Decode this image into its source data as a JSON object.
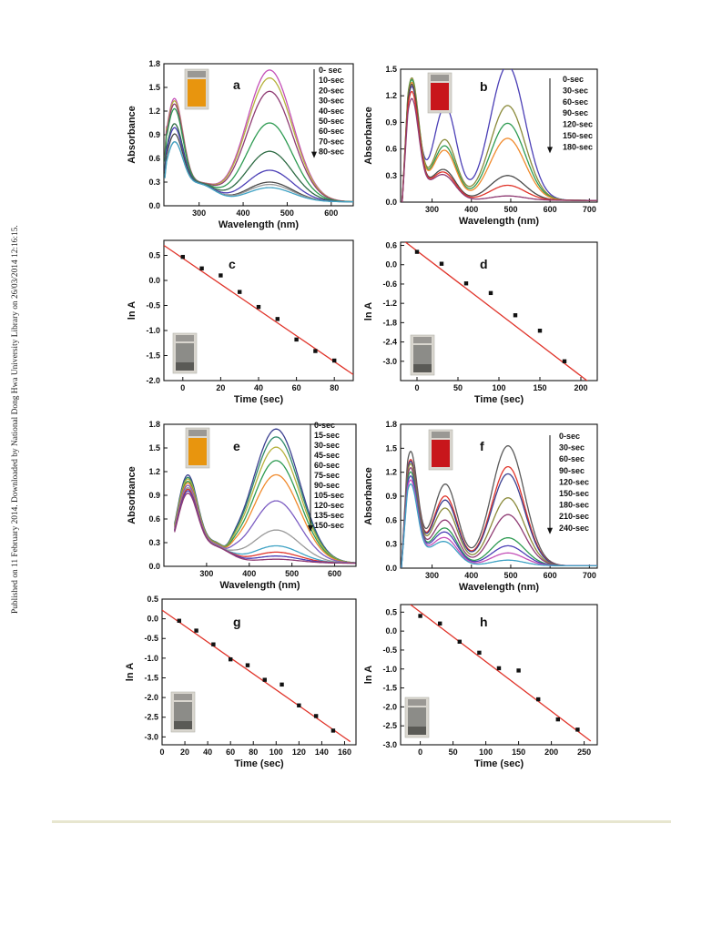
{
  "sidebar_text": "Published on 11 February 2014. Downloaded by National Dong Hwa University Library on 26/03/2014 12:16:15.",
  "colors": {
    "fit_line": "#e0342a",
    "marker": "#111111",
    "vial_orange": "#e8950e",
    "vial_red": "#c8161b",
    "vial_grey": "#8c8c88",
    "footer_rule": "#e7e6cf",
    "curve_palette": [
      "#c44fb8",
      "#b7b23e",
      "#8f3b73",
      "#2e9b52",
      "#2c6a42",
      "#4b3fb6",
      "#4a4a4a",
      "#9a9a9a",
      "#3ea2c4",
      "#e0342a",
      "#f08a2c",
      "#7b5cc2"
    ]
  },
  "chart_data": [
    {
      "id": "a",
      "type": "line",
      "panel_label": "a",
      "xlabel": "Wavelength (nm)",
      "ylabel": "Absorbance",
      "xlim": [
        220,
        650
      ],
      "ylim": [
        0,
        1.8
      ],
      "xticks": [
        300,
        400,
        500,
        600
      ],
      "yticks": [
        0.0,
        0.3,
        0.6,
        0.9,
        1.2,
        1.5,
        1.8
      ],
      "legend_position": "top-right",
      "legend": [
        "0- sec",
        "10-sec",
        "20-sec",
        "30-sec",
        "40-sec",
        "50-sec",
        "60-sec",
        "70-sec",
        "80-sec"
      ],
      "inset_vial": "orange",
      "series": [
        {
          "label": "0- sec",
          "color": "#c44fb8",
          "peak2": 1.67
        },
        {
          "label": "10-sec",
          "color": "#b7b23e",
          "peak2": 1.57
        },
        {
          "label": "20-sec",
          "color": "#8f3b73",
          "peak2": 1.4
        },
        {
          "label": "30-sec",
          "color": "#2e9b52",
          "peak2": 1.0
        },
        {
          "label": "40-sec",
          "color": "#2c6a42",
          "peak2": 0.64
        },
        {
          "label": "50-sec",
          "color": "#4b3fb6",
          "peak2": 0.4
        },
        {
          "label": "60-sec",
          "color": "#4a4a4a",
          "peak2": 0.25
        },
        {
          "label": "70-sec",
          "color": "#9a9a9a",
          "peak2": 0.22
        },
        {
          "label": "80-sec",
          "color": "#3ea2c4",
          "peak2": 0.18
        }
      ]
    },
    {
      "id": "b",
      "type": "line",
      "panel_label": "b",
      "xlabel": "Wavelength (nm)",
      "ylabel": "Absorbance",
      "xlim": [
        220,
        720
      ],
      "ylim": [
        0,
        1.5
      ],
      "xticks": [
        300,
        400,
        500,
        600,
        700
      ],
      "yticks": [
        0.0,
        0.3,
        0.6,
        0.9,
        1.2,
        1.5
      ],
      "legend_position": "top-right",
      "legend": [
        "0-sec",
        "30-sec",
        "60-sec",
        "90-sec",
        "120-sec",
        "150-sec",
        "180-sec"
      ],
      "inset_vial": "red",
      "series": [
        {
          "label": "0-sec",
          "color": "#4b3fb6",
          "peak2": 1.52
        },
        {
          "label": "30-sec",
          "color": "#8a8a3a",
          "peak2": 1.07
        },
        {
          "label": "60-sec",
          "color": "#2e9b52",
          "peak2": 0.87
        },
        {
          "label": "90-sec",
          "color": "#f08a2c",
          "peak2": 0.7
        },
        {
          "label": "120-sec",
          "color": "#4a4a4a",
          "peak2": 0.28
        },
        {
          "label": "150-sec",
          "color": "#e0342a",
          "peak2": 0.17
        },
        {
          "label": "180-sec",
          "color": "#8f3b73",
          "peak2": 0.05
        }
      ]
    },
    {
      "id": "c",
      "type": "scatter",
      "panel_label": "c",
      "xlabel": "Time (sec)",
      "ylabel": "ln A",
      "xlim": [
        -10,
        90
      ],
      "ylim": [
        -2.0,
        0.8
      ],
      "xticks": [
        0,
        20,
        40,
        60,
        80
      ],
      "yticks": [
        -2.0,
        -1.5,
        -1.0,
        -0.5,
        0.0,
        0.5
      ],
      "inset_vial": "grey",
      "x": [
        0,
        10,
        20,
        30,
        40,
        50,
        60,
        70,
        80
      ],
      "y": [
        0.47,
        0.24,
        0.1,
        -0.23,
        -0.53,
        -0.77,
        -1.18,
        -1.41,
        -1.6
      ],
      "fit": {
        "x": [
          -10,
          90
        ],
        "y": [
          0.7,
          -1.88
        ]
      }
    },
    {
      "id": "d",
      "type": "scatter",
      "panel_label": "d",
      "xlabel": "Time (sec)",
      "ylabel": "ln A",
      "xlim": [
        -20,
        220
      ],
      "ylim": [
        -3.6,
        0.7
      ],
      "xticks": [
        0,
        50,
        100,
        150,
        200
      ],
      "yticks": [
        -3.0,
        -2.4,
        -1.8,
        -1.2,
        -0.6,
        0.0,
        0.6
      ],
      "inset_vial": "grey",
      "x": [
        0,
        30,
        60,
        90,
        120,
        150,
        180
      ],
      "y": [
        0.4,
        0.03,
        -0.58,
        -0.88,
        -1.57,
        -2.05,
        -3.0
      ],
      "fit": {
        "x": [
          -15,
          210
        ],
        "y": [
          0.72,
          -3.65
        ]
      }
    },
    {
      "id": "e",
      "type": "line",
      "panel_label": "e",
      "xlabel": "Wavelength (nm)",
      "ylabel": "Absorbance",
      "xlim": [
        200,
        650
      ],
      "ylim": [
        0,
        1.8
      ],
      "xticks": [
        300,
        400,
        500,
        600
      ],
      "yticks": [
        0.0,
        0.3,
        0.6,
        0.9,
        1.2,
        1.5,
        1.8
      ],
      "legend_position": "top-right",
      "legend": [
        "0-sec",
        "15-sec",
        "30-sec",
        "45-sec",
        "60-sec",
        "75-sec",
        "90-sec",
        "105-sec",
        "120-sec",
        "135-sec",
        "150-sec"
      ],
      "inset_vial": "orange",
      "series": [
        {
          "label": "0-sec",
          "color": "#3a3f8f",
          "peak2": 1.7
        },
        {
          "label": "15-sec",
          "color": "#2f8a6a",
          "peak2": 1.6
        },
        {
          "label": "30-sec",
          "color": "#b7b23e",
          "peak2": 1.47
        },
        {
          "label": "45-sec",
          "color": "#2e9b52",
          "peak2": 1.3
        },
        {
          "label": "60-sec",
          "color": "#f08a2c",
          "peak2": 1.12
        },
        {
          "label": "75-sec",
          "color": "#7b5cc2",
          "peak2": 0.79
        },
        {
          "label": "90-sec",
          "color": "#9a9a9a",
          "peak2": 0.42
        },
        {
          "label": "105-sec",
          "color": "#3ea2c4",
          "peak2": 0.22
        },
        {
          "label": "120-sec",
          "color": "#e0342a",
          "peak2": 0.14
        },
        {
          "label": "135-sec",
          "color": "#4b3fb6",
          "peak2": 0.09
        },
        {
          "label": "150-sec",
          "color": "#8f3b73",
          "peak2": 0.05
        }
      ]
    },
    {
      "id": "f",
      "type": "line",
      "panel_label": "f",
      "xlabel": "Wavelength (nm)",
      "ylabel": "Absorbance",
      "xlim": [
        220,
        720
      ],
      "ylim": [
        0,
        1.8
      ],
      "xticks": [
        300,
        400,
        500,
        600,
        700
      ],
      "yticks": [
        0.0,
        0.3,
        0.6,
        0.9,
        1.2,
        1.5,
        1.8
      ],
      "legend_position": "top-right",
      "legend": [
        "0-sec",
        "30-sec",
        "60-sec",
        "90-sec",
        "120-sec",
        "150-sec",
        "180-sec",
        "210-sec",
        "240-sec"
      ],
      "inset_vial": "red",
      "series": [
        {
          "label": "0-sec",
          "color": "#5a5a5a",
          "peak2": 1.5
        },
        {
          "label": "30-sec",
          "color": "#e0342a",
          "peak2": 1.24
        },
        {
          "label": "60-sec",
          "color": "#3a3f8f",
          "peak2": 1.15
        },
        {
          "label": "90-sec",
          "color": "#8a8a3a",
          "peak2": 0.85
        },
        {
          "label": "120-sec",
          "color": "#8f3b73",
          "peak2": 0.64
        },
        {
          "label": "150-sec",
          "color": "#2e9b52",
          "peak2": 0.35
        },
        {
          "label": "180-sec",
          "color": "#4b3fb6",
          "peak2": 0.25
        },
        {
          "label": "210-sec",
          "color": "#c44fb8",
          "peak2": 0.16
        },
        {
          "label": "240-sec",
          "color": "#3ea2c4",
          "peak2": 0.07
        }
      ]
    },
    {
      "id": "g",
      "type": "scatter",
      "panel_label": "g",
      "xlabel": "Time (sec)",
      "ylabel": "ln A",
      "xlim": [
        0,
        170
      ],
      "ylim": [
        -3.2,
        0.5
      ],
      "xticks": [
        0,
        20,
        40,
        60,
        80,
        100,
        120,
        140,
        160
      ],
      "yticks": [
        -3.0,
        -2.5,
        -2.0,
        -1.5,
        -1.0,
        -0.5,
        0.0,
        0.5
      ],
      "inset_vial": "grey",
      "x": [
        15,
        30,
        45,
        60,
        75,
        90,
        105,
        120,
        135,
        150
      ],
      "y": [
        -0.05,
        -0.3,
        -0.65,
        -1.03,
        -1.18,
        -1.55,
        -1.67,
        -2.2,
        -2.47,
        -2.84
      ],
      "fit": {
        "x": [
          0,
          165
        ],
        "y": [
          0.22,
          -3.12
        ]
      }
    },
    {
      "id": "h",
      "type": "scatter",
      "panel_label": "h",
      "xlabel": "Time (sec)",
      "ylabel": "ln A",
      "xlim": [
        -30,
        270
      ],
      "ylim": [
        -3.0,
        0.7
      ],
      "xticks": [
        0,
        50,
        100,
        150,
        200,
        250
      ],
      "yticks": [
        -3.0,
        -2.5,
        -2.0,
        -1.5,
        -1.0,
        -0.5,
        0.0,
        0.5
      ],
      "inset_vial": "grey",
      "x": [
        0,
        30,
        60,
        90,
        120,
        150,
        180,
        210,
        240
      ],
      "y": [
        0.4,
        0.2,
        -0.28,
        -0.57,
        -0.98,
        -1.04,
        -1.8,
        -2.33,
        -2.6
      ],
      "fit": {
        "x": [
          -15,
          260
        ],
        "y": [
          0.7,
          -2.9
        ]
      }
    }
  ]
}
